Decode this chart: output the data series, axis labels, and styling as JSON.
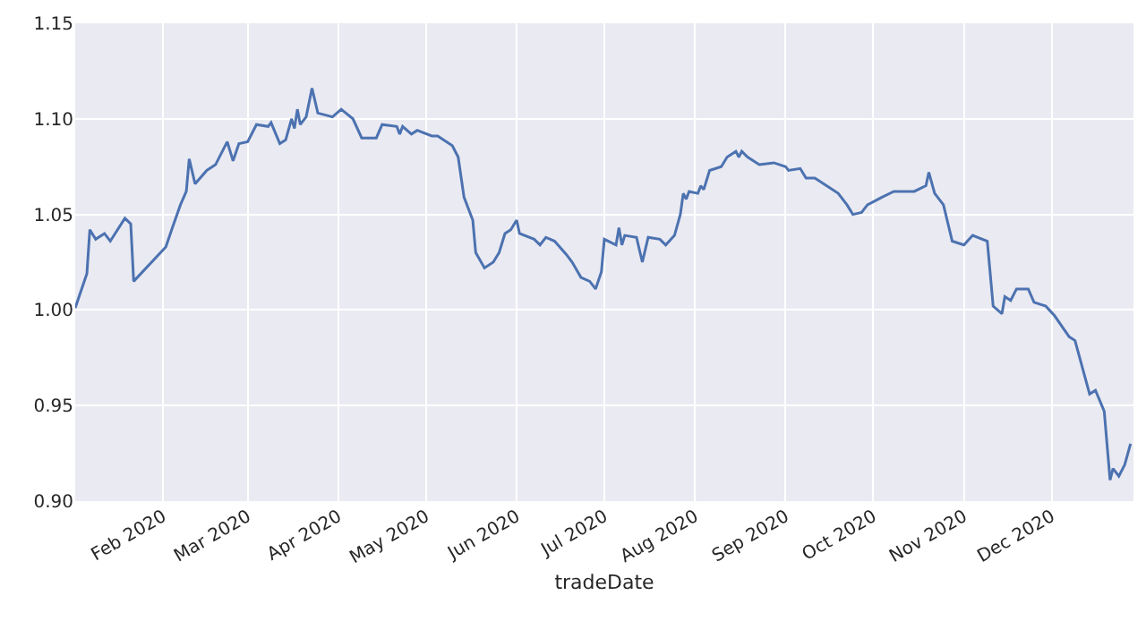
{
  "chart_data": {
    "type": "line",
    "xlabel": "tradeDate",
    "grid": true,
    "marker": "none",
    "line_style": "solid",
    "xlim": [
      "2020-01-02",
      "2020-12-29"
    ],
    "xticks": [
      {
        "value": "2020-02-01",
        "label": "Feb 2020"
      },
      {
        "value": "2020-03-01",
        "label": "Mar 2020"
      },
      {
        "value": "2020-04-01",
        "label": "Apr 2020"
      },
      {
        "value": "2020-05-01",
        "label": "May 2020"
      },
      {
        "value": "2020-06-01",
        "label": "Jun 2020"
      },
      {
        "value": "2020-07-01",
        "label": "Jul 2020"
      },
      {
        "value": "2020-08-01",
        "label": "Aug 2020"
      },
      {
        "value": "2020-09-01",
        "label": "Sep 2020"
      },
      {
        "value": "2020-10-01",
        "label": "Oct 2020"
      },
      {
        "value": "2020-11-01",
        "label": "Nov 2020"
      },
      {
        "value": "2020-12-01",
        "label": "Dec 2020"
      }
    ],
    "ylim": [
      0.9,
      1.15
    ],
    "yticks": [
      {
        "value": 0.9,
        "label": "0.90"
      },
      {
        "value": 0.95,
        "label": "0.95"
      },
      {
        "value": 1.0,
        "label": "1.00"
      },
      {
        "value": 1.05,
        "label": "1.05"
      },
      {
        "value": 1.1,
        "label": "1.10"
      },
      {
        "value": 1.15,
        "label": "1.15"
      }
    ],
    "series": [
      {
        "color": "#4c72b0",
        "x": [
          "2020-01-02",
          "2020-01-06",
          "2020-01-07",
          "2020-01-09",
          "2020-01-12",
          "2020-01-14",
          "2020-01-19",
          "2020-01-21",
          "2020-01-22",
          "2020-02-02",
          "2020-02-04",
          "2020-02-07",
          "2020-02-09",
          "2020-02-10",
          "2020-02-12",
          "2020-02-16",
          "2020-02-19",
          "2020-02-23",
          "2020-02-25",
          "2020-02-27",
          "2020-03-01",
          "2020-03-04",
          "2020-03-08",
          "2020-03-09",
          "2020-03-12",
          "2020-03-14",
          "2020-03-16",
          "2020-03-17",
          "2020-03-18",
          "2020-03-19",
          "2020-03-21",
          "2020-03-23",
          "2020-03-25",
          "2020-03-30",
          "2020-04-02",
          "2020-04-06",
          "2020-04-09",
          "2020-04-14",
          "2020-04-16",
          "2020-04-21",
          "2020-04-22",
          "2020-04-23",
          "2020-04-26",
          "2020-04-28",
          "2020-05-03",
          "2020-05-05",
          "2020-05-10",
          "2020-05-12",
          "2020-05-14",
          "2020-05-17",
          "2020-05-18",
          "2020-05-21",
          "2020-05-24",
          "2020-05-26",
          "2020-05-28",
          "2020-05-30",
          "2020-06-01",
          "2020-06-02",
          "2020-06-07",
          "2020-06-09",
          "2020-06-11",
          "2020-06-14",
          "2020-06-18",
          "2020-06-20",
          "2020-06-23",
          "2020-06-26",
          "2020-06-28",
          "2020-06-30",
          "2020-07-01",
          "2020-07-05",
          "2020-07-06",
          "2020-07-07",
          "2020-07-08",
          "2020-07-12",
          "2020-07-14",
          "2020-07-16",
          "2020-07-20",
          "2020-07-22",
          "2020-07-25",
          "2020-07-27",
          "2020-07-28",
          "2020-07-29",
          "2020-07-30",
          "2020-08-02",
          "2020-08-03",
          "2020-08-04",
          "2020-08-06",
          "2020-08-10",
          "2020-08-12",
          "2020-08-15",
          "2020-08-16",
          "2020-08-17",
          "2020-08-19",
          "2020-08-23",
          "2020-08-28",
          "2020-09-01",
          "2020-09-02",
          "2020-09-06",
          "2020-09-08",
          "2020-09-11",
          "2020-09-15",
          "2020-09-19",
          "2020-09-22",
          "2020-09-24",
          "2020-09-27",
          "2020-09-29",
          "2020-10-04",
          "2020-10-08",
          "2020-10-12",
          "2020-10-15",
          "2020-10-19",
          "2020-10-20",
          "2020-10-22",
          "2020-10-25",
          "2020-10-28",
          "2020-11-01",
          "2020-11-04",
          "2020-11-09",
          "2020-11-11",
          "2020-11-14",
          "2020-11-15",
          "2020-11-17",
          "2020-11-19",
          "2020-11-23",
          "2020-11-25",
          "2020-11-29",
          "2020-12-02",
          "2020-12-07",
          "2020-12-09",
          "2020-12-14",
          "2020-12-16",
          "2020-12-19",
          "2020-12-21",
          "2020-12-22",
          "2020-12-24",
          "2020-12-26",
          "2020-12-28"
        ],
        "values": [
          1.001,
          1.019,
          1.042,
          1.037,
          1.04,
          1.036,
          1.048,
          1.045,
          1.015,
          1.033,
          1.042,
          1.055,
          1.062,
          1.079,
          1.066,
          1.073,
          1.076,
          1.088,
          1.078,
          1.087,
          1.088,
          1.097,
          1.096,
          1.098,
          1.087,
          1.089,
          1.1,
          1.095,
          1.105,
          1.097,
          1.101,
          1.116,
          1.103,
          1.101,
          1.105,
          1.1,
          1.09,
          1.09,
          1.097,
          1.096,
          1.092,
          1.096,
          1.092,
          1.094,
          1.091,
          1.091,
          1.086,
          1.08,
          1.059,
          1.047,
          1.03,
          1.022,
          1.025,
          1.03,
          1.04,
          1.042,
          1.047,
          1.04,
          1.037,
          1.034,
          1.038,
          1.036,
          1.029,
          1.025,
          1.017,
          1.015,
          1.011,
          1.02,
          1.037,
          1.034,
          1.043,
          1.034,
          1.039,
          1.038,
          1.025,
          1.038,
          1.037,
          1.034,
          1.039,
          1.05,
          1.061,
          1.058,
          1.062,
          1.061,
          1.065,
          1.063,
          1.073,
          1.075,
          1.08,
          1.083,
          1.08,
          1.083,
          1.08,
          1.076,
          1.077,
          1.075,
          1.073,
          1.074,
          1.069,
          1.069,
          1.065,
          1.061,
          1.055,
          1.05,
          1.051,
          1.055,
          1.059,
          1.062,
          1.062,
          1.062,
          1.065,
          1.072,
          1.061,
          1.055,
          1.036,
          1.034,
          1.039,
          1.036,
          1.002,
          0.998,
          1.007,
          1.005,
          1.011,
          1.011,
          1.004,
          1.002,
          0.997,
          0.986,
          0.984,
          0.956,
          0.958,
          0.947,
          0.911,
          0.917,
          0.913,
          0.919,
          0.93
        ]
      }
    ]
  }
}
